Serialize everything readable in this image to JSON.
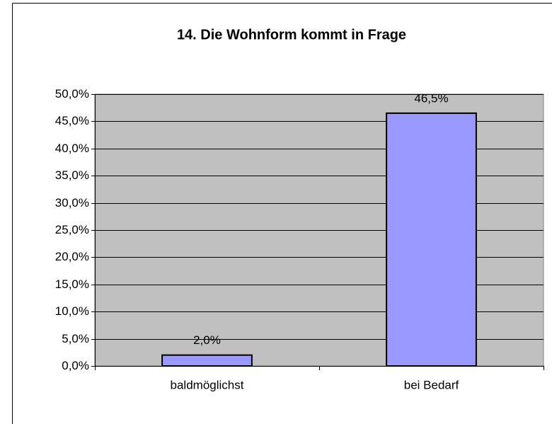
{
  "chart_data": {
    "type": "bar",
    "title": "14. Die Wohnform kommt in Frage",
    "categories": [
      "baldmöglichst",
      "bei Bedarf"
    ],
    "values": [
      2.0,
      46.5
    ],
    "value_labels": [
      "2,0%",
      "46,5%"
    ],
    "color": "#9999ff",
    "plot_background": "#c0c0c0",
    "ylim": [
      0,
      50
    ],
    "yticks": [
      {
        "value": 0,
        "label": "0,0%"
      },
      {
        "value": 5,
        "label": "5,0%"
      },
      {
        "value": 10,
        "label": "10,0%"
      },
      {
        "value": 15,
        "label": "15,0%"
      },
      {
        "value": 20,
        "label": "20,0%"
      },
      {
        "value": 25,
        "label": "25,0%"
      },
      {
        "value": 30,
        "label": "30,0%"
      },
      {
        "value": 35,
        "label": "35,0%"
      },
      {
        "value": 40,
        "label": "40,0%"
      },
      {
        "value": 45,
        "label": "45,0%"
      },
      {
        "value": 50,
        "label": "50,0%"
      }
    ],
    "grid": true
  }
}
